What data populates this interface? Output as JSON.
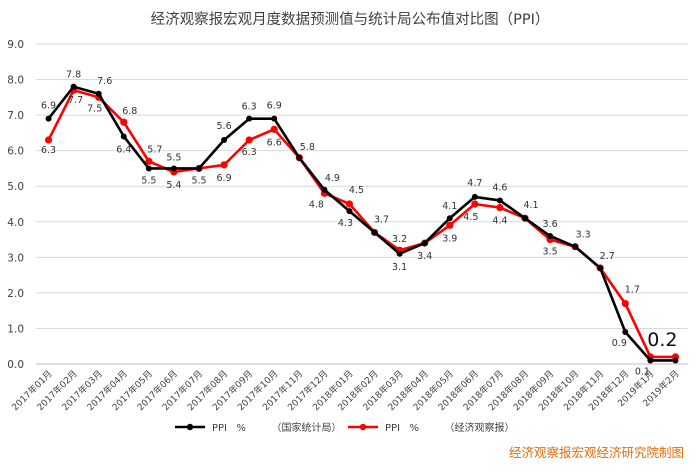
{
  "chart_data": {
    "type": "line",
    "title": "经济观察报宏观月度数据预测值与统计局公布值对比图（PPI）",
    "categories": [
      "2017年01月",
      "2017年02月",
      "2017年03月",
      "2017年04月",
      "2017年05月",
      "2017年06月",
      "2017年07月",
      "2017年08月",
      "2017年09月",
      "2017年10月",
      "2017年11月",
      "2017年12月",
      "2018年01月",
      "2018年02月",
      "2018年03月",
      "2018年04月",
      "2018年05月",
      "2018年06月",
      "2018年07月",
      "2018年08月",
      "2018年09月",
      "2018年10月",
      "2018年11月",
      "2018年12月",
      "2019年1月",
      "2019年2月"
    ],
    "series": [
      {
        "name": "PPI   %        （国家统计局）",
        "color": "#000000",
        "values": [
          6.9,
          7.8,
          7.6,
          6.4,
          5.5,
          5.5,
          5.5,
          6.3,
          6.9,
          6.9,
          5.8,
          4.9,
          4.3,
          3.7,
          3.1,
          3.4,
          4.1,
          4.7,
          4.6,
          4.1,
          3.6,
          3.3,
          2.7,
          0.9,
          0.1,
          0.1
        ]
      },
      {
        "name": "PPI   %        （经济观察报）",
        "color": "#ff0000",
        "values": [
          6.3,
          7.7,
          7.5,
          6.8,
          5.7,
          5.4,
          5.5,
          5.6,
          6.3,
          6.6,
          5.8,
          4.8,
          4.5,
          3.7,
          3.2,
          3.4,
          3.9,
          4.5,
          4.4,
          4.1,
          3.5,
          3.3,
          2.7,
          1.7,
          0.2,
          0.2
        ]
      }
    ],
    "ylim": [
      0,
      9
    ],
    "yticks": [
      "0.0",
      "1.0",
      "2.0",
      "3.0",
      "4.0",
      "5.0",
      "6.0",
      "7.0",
      "8.0",
      "9.0"
    ],
    "grid": true,
    "legend": "bottom",
    "data_labels": [
      "6.9",
      "6.3",
      "7.8",
      "7.7",
      "7.6",
      "7.5",
      "6.4",
      "6.8",
      "5.5",
      "5.7",
      "5.5",
      "5.4",
      "5.5",
      "6.3",
      "5.6",
      "6.9",
      "6.3",
      "6.9",
      "6.6",
      "5.8",
      "4.9",
      "4.8",
      "4.3",
      "4.5",
      "3.7",
      "3.2",
      "3.1",
      "3.4",
      "4.1",
      "3.9",
      "4.7",
      "4.5",
      "4.6",
      "4.4",
      "4.1",
      "3.6",
      "3.5",
      "3.3",
      "2.7",
      "1.7",
      "0.9",
      "0.1",
      "0.2"
    ],
    "credit": "经济观察报宏观经济研究院制图"
  }
}
